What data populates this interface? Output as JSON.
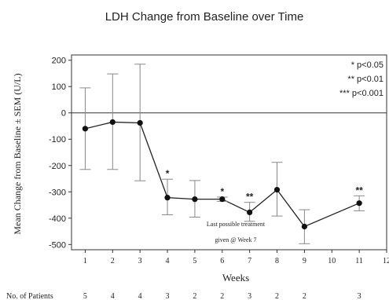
{
  "chart_data": {
    "type": "line",
    "title": "LDH Change from Baseline over Time",
    "xlabel": "Weeks",
    "ylabel": "Mean Change from Baseline ± SEM (U/L)",
    "xlim": [
      0.5,
      12
    ],
    "ylim": [
      -520,
      220
    ],
    "x_ticks": [
      "1",
      "2",
      "3",
      "4",
      "5",
      "6",
      "7",
      "8",
      "9",
      "10",
      "11",
      "12"
    ],
    "y_ticks": [
      "200",
      "100",
      "0",
      "-100",
      "-200",
      "-300",
      "-400",
      "-500"
    ],
    "y_tick_values": [
      200,
      100,
      0,
      -100,
      -200,
      -300,
      -400,
      -500
    ],
    "reference_line_y": 0,
    "grid": false,
    "points": [
      {
        "x": 1,
        "y": -60,
        "lo": -215,
        "hi": 95
      },
      {
        "x": 2,
        "y": -35,
        "lo": -215,
        "hi": 148
      },
      {
        "x": 3,
        "y": -38,
        "lo": -258,
        "hi": 185
      },
      {
        "x": 4,
        "y": -322,
        "lo": -387,
        "hi": -252
      },
      {
        "x": 5,
        "y": -328,
        "lo": -396,
        "hi": -257
      },
      {
        "x": 6,
        "y": -328,
        "lo": -336,
        "hi": -320
      },
      {
        "x": 7,
        "y": -378,
        "lo": -412,
        "hi": -340
      },
      {
        "x": 8,
        "y": -292,
        "lo": -392,
        "hi": -188
      },
      {
        "x": 9,
        "y": -432,
        "lo": -497,
        "hi": -368
      },
      {
        "x": 11,
        "y": -343,
        "lo": -372,
        "hi": -315
      }
    ],
    "significance": [
      {
        "x": 4,
        "label": "*"
      },
      {
        "x": 6,
        "label": "*"
      },
      {
        "x": 7,
        "label": "**"
      },
      {
        "x": 11,
        "label": "**"
      }
    ],
    "legend": [
      "* p<0.05",
      "** p<0.01",
      "*** p<0.001"
    ],
    "annotation": [
      "Last possible treatment",
      "given @ Week 7"
    ],
    "patients_label": "No. of Patients",
    "patients": [
      {
        "x": 1,
        "n": "5"
      },
      {
        "x": 2,
        "n": "4"
      },
      {
        "x": 3,
        "n": "4"
      },
      {
        "x": 4,
        "n": "3"
      },
      {
        "x": 5,
        "n": "2"
      },
      {
        "x": 6,
        "n": "2"
      },
      {
        "x": 7,
        "n": "3"
      },
      {
        "x": 8,
        "n": "2"
      },
      {
        "x": 9,
        "n": "2"
      },
      {
        "x": 11,
        "n": "3"
      }
    ]
  }
}
